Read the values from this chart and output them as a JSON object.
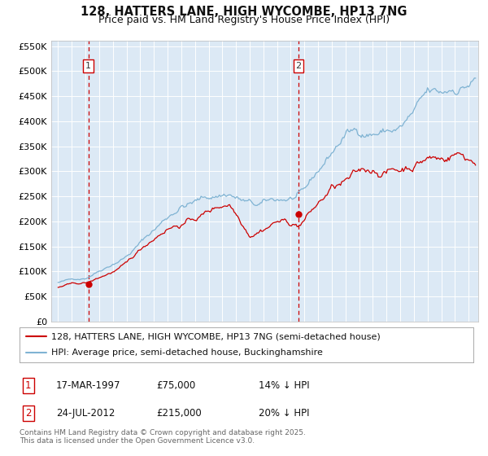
{
  "title": "128, HATTERS LANE, HIGH WYCOMBE, HP13 7NG",
  "subtitle": "Price paid vs. HM Land Registry's House Price Index (HPI)",
  "ylim": [
    0,
    560000
  ],
  "yticks": [
    0,
    50000,
    100000,
    150000,
    200000,
    250000,
    300000,
    350000,
    400000,
    450000,
    500000,
    550000
  ],
  "ytick_labels": [
    "£0",
    "£50K",
    "£100K",
    "£150K",
    "£200K",
    "£250K",
    "£300K",
    "£350K",
    "£400K",
    "£450K",
    "£500K",
    "£550K"
  ],
  "plot_bg_color": "#dce9f5",
  "grid_color": "#ffffff",
  "red_line_color": "#cc0000",
  "blue_line_color": "#7fb3d3",
  "sale1_date": 1997.21,
  "sale1_price": 75000,
  "sale2_date": 2012.56,
  "sale2_price": 215000,
  "legend_red": "128, HATTERS LANE, HIGH WYCOMBE, HP13 7NG (semi-detached house)",
  "legend_blue": "HPI: Average price, semi-detached house, Buckinghamshire",
  "table_row1": [
    "1",
    "17-MAR-1997",
    "£75,000",
    "14% ↓ HPI"
  ],
  "table_row2": [
    "2",
    "24-JUL-2012",
    "£215,000",
    "20% ↓ HPI"
  ],
  "footnote": "Contains HM Land Registry data © Crown copyright and database right 2025.\nThis data is licensed under the Open Government Licence v3.0.",
  "title_fontsize": 10.5,
  "subtitle_fontsize": 9,
  "tick_fontsize": 8,
  "legend_fontsize": 8,
  "table_fontsize": 8.5,
  "footnote_fontsize": 6.5
}
